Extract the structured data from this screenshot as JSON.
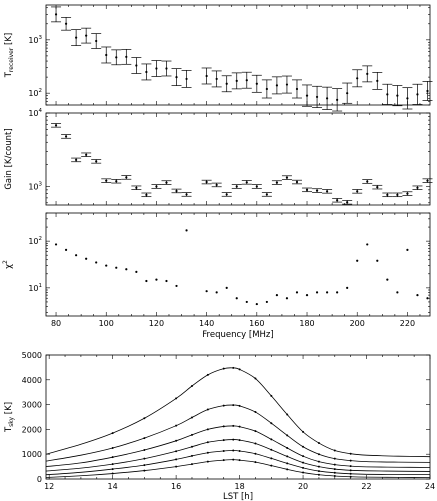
{
  "chart_data": [
    {
      "type": "scatter",
      "ylabel": "T_receiver [K]",
      "ylabel_main": "T",
      "ylabel_sub": "receiver",
      "ylabel_unit": " [K]",
      "yscale": "log",
      "ylim": [
        60,
        4500
      ],
      "xlim": [
        76,
        229
      ],
      "grid": false,
      "error_bars": true,
      "yticks": [
        {
          "v": 100,
          "e": "2"
        },
        {
          "v": 1000,
          "e": "3"
        }
      ],
      "x": [
        80,
        84,
        88,
        92,
        96,
        100,
        104,
        108,
        112,
        116,
        120,
        124,
        128,
        132,
        140,
        144,
        148,
        152,
        156,
        160,
        164,
        168,
        172,
        176,
        180,
        184,
        188,
        192,
        196,
        200,
        204,
        208,
        212,
        216,
        220,
        224,
        228
      ],
      "values": [
        3000,
        2000,
        1100,
        1200,
        950,
        520,
        470,
        480,
        330,
        250,
        290,
        290,
        200,
        185,
        210,
        185,
        150,
        170,
        175,
        150,
        120,
        140,
        145,
        120,
        90,
        85,
        80,
        75,
        100,
        190,
        230,
        170,
        95,
        90,
        80,
        95,
        110
      ],
      "errors": [
        0.14,
        0.12,
        0.15,
        0.14,
        0.14,
        0.15,
        0.14,
        0.14,
        0.15,
        0.15,
        0.15,
        0.14,
        0.16,
        0.16,
        0.15,
        0.15,
        0.15,
        0.15,
        0.15,
        0.16,
        0.17,
        0.16,
        0.16,
        0.17,
        0.2,
        0.2,
        0.21,
        0.21,
        0.19,
        0.16,
        0.15,
        0.16,
        0.19,
        0.19,
        0.2,
        0.19,
        0.18
      ]
    },
    {
      "type": "scatter",
      "ylabel": "Gain [K/count]",
      "yscale": "log",
      "ylim": [
        560,
        10000
      ],
      "xlim": [
        76,
        229
      ],
      "grid": false,
      "error_bars": true,
      "yticks": [
        {
          "v": 1000,
          "e": "3"
        },
        {
          "v": 10000,
          "e": "4"
        }
      ],
      "x": [
        80,
        84,
        88,
        92,
        96,
        100,
        104,
        108,
        112,
        116,
        120,
        124,
        128,
        132,
        140,
        144,
        148,
        152,
        156,
        160,
        164,
        168,
        172,
        176,
        180,
        184,
        188,
        192,
        196,
        200,
        204,
        208,
        212,
        216,
        220,
        224,
        228
      ],
      "values": [
        6800,
        4800,
        2300,
        2700,
        2200,
        1200,
        1180,
        1330,
        960,
        770,
        1000,
        1130,
        870,
        780,
        1150,
        1050,
        780,
        1000,
        1140,
        1000,
        780,
        1130,
        1320,
        1150,
        900,
        880,
        860,
        650,
        610,
        860,
        1170,
        980,
        770,
        770,
        800,
        960,
        1200
      ],
      "errors": [
        0.025,
        0.025,
        0.025,
        0.025,
        0.025,
        0.025,
        0.025,
        0.025,
        0.025,
        0.025,
        0.025,
        0.025,
        0.025,
        0.025,
        0.025,
        0.025,
        0.025,
        0.025,
        0.025,
        0.025,
        0.025,
        0.025,
        0.025,
        0.025,
        0.025,
        0.025,
        0.025,
        0.025,
        0.025,
        0.025,
        0.025,
        0.025,
        0.025,
        0.025,
        0.025,
        0.025,
        0.025
      ]
    },
    {
      "type": "scatter",
      "ylabel": "χ²",
      "ylabel_main": "χ",
      "ylabel_sup": "2",
      "xlabel": "Frequency [MHz]",
      "yscale": "log",
      "ylim": [
        2.5,
        400
      ],
      "xlim": [
        76,
        229
      ],
      "grid": false,
      "xticks": [
        80,
        100,
        120,
        140,
        160,
        180,
        200,
        220
      ],
      "yticks": [
        {
          "v": 10,
          "e": "1"
        },
        {
          "v": 100,
          "e": "2"
        }
      ],
      "x": [
        80,
        84,
        88,
        92,
        96,
        100,
        104,
        108,
        112,
        116,
        120,
        124,
        128,
        132,
        140,
        144,
        148,
        152,
        156,
        160,
        164,
        168,
        172,
        176,
        180,
        184,
        188,
        192,
        196,
        200,
        204,
        208,
        212,
        216,
        220,
        224,
        228
      ],
      "values": [
        85,
        65,
        50,
        42,
        35,
        30,
        27,
        25,
        22,
        14,
        15,
        14,
        11,
        170,
        8.5,
        8,
        10,
        6,
        5,
        4.5,
        5,
        7,
        6,
        8,
        7,
        8,
        8,
        8,
        10,
        38,
        85,
        38,
        15,
        8,
        65,
        7,
        6
      ]
    },
    {
      "type": "line",
      "xlabel": "LST [h]",
      "ylabel": "T_sky [K]",
      "ylabel_main": "T",
      "ylabel_sub": "sky",
      "ylabel_unit": " [K]",
      "xlim": [
        11.9,
        24
      ],
      "ylim": [
        0,
        5000
      ],
      "grid": false,
      "xticks": [
        12,
        14,
        16,
        18,
        20,
        22,
        24
      ],
      "yticks": [
        0,
        1000,
        2000,
        3000,
        4000,
        5000
      ],
      "series": [
        {
          "x": [
            11.9,
            13,
            14,
            15,
            16,
            16.5,
            17,
            17.5,
            17.8,
            18,
            18.5,
            19,
            19.5,
            20,
            20.5,
            21,
            21.5,
            22,
            23,
            24
          ],
          "values": [
            1000,
            1400,
            1850,
            2450,
            3250,
            3750,
            4200,
            4450,
            4480,
            4420,
            4050,
            3350,
            2600,
            1900,
            1450,
            1150,
            1020,
            960,
            920,
            900
          ]
        },
        {
          "x": [
            11.9,
            13,
            14,
            15,
            16,
            16.5,
            17,
            17.5,
            17.8,
            18,
            18.5,
            19,
            19.5,
            20,
            20.5,
            21,
            21.5,
            22,
            23,
            24
          ],
          "values": [
            720,
            960,
            1250,
            1650,
            2150,
            2480,
            2800,
            2960,
            2980,
            2950,
            2700,
            2250,
            1760,
            1300,
            1000,
            820,
            740,
            700,
            680,
            670
          ]
        },
        {
          "x": [
            11.9,
            13,
            14,
            15,
            16,
            16.5,
            17,
            17.5,
            17.8,
            18,
            18.5,
            19,
            19.5,
            20,
            20.5,
            21,
            21.5,
            22,
            23,
            24
          ],
          "values": [
            500,
            650,
            880,
            1170,
            1540,
            1780,
            2000,
            2120,
            2140,
            2110,
            1930,
            1600,
            1250,
            920,
            700,
            580,
            520,
            490,
            475,
            465
          ]
        },
        {
          "x": [
            11.9,
            13,
            14,
            15,
            16,
            16.5,
            17,
            17.5,
            17.8,
            18,
            18.5,
            19,
            19.5,
            20,
            20.5,
            21,
            21.5,
            22,
            23,
            24
          ],
          "values": [
            320,
            440,
            600,
            820,
            1120,
            1300,
            1480,
            1570,
            1590,
            1570,
            1430,
            1180,
            910,
            660,
            500,
            400,
            350,
            330,
            315,
            305
          ]
        },
        {
          "x": [
            11.9,
            13,
            14,
            15,
            16,
            16.5,
            17,
            17.5,
            17.8,
            18,
            18.5,
            19,
            19.5,
            20,
            20.5,
            21,
            21.5,
            22,
            23,
            24
          ],
          "values": [
            170,
            270,
            400,
            560,
            790,
            930,
            1060,
            1130,
            1150,
            1130,
            1020,
            830,
            630,
            450,
            320,
            250,
            210,
            190,
            180,
            175
          ]
        },
        {
          "x": [
            11.9,
            13,
            14,
            15,
            16,
            16.5,
            17,
            17.5,
            17.8,
            18,
            18.5,
            19,
            19.5,
            20,
            20.5,
            21,
            21.5,
            22,
            23,
            24
          ],
          "values": [
            60,
            130,
            220,
            340,
            500,
            600,
            700,
            760,
            780,
            760,
            680,
            540,
            390,
            260,
            170,
            120,
            90,
            75,
            65,
            60
          ]
        }
      ]
    }
  ]
}
